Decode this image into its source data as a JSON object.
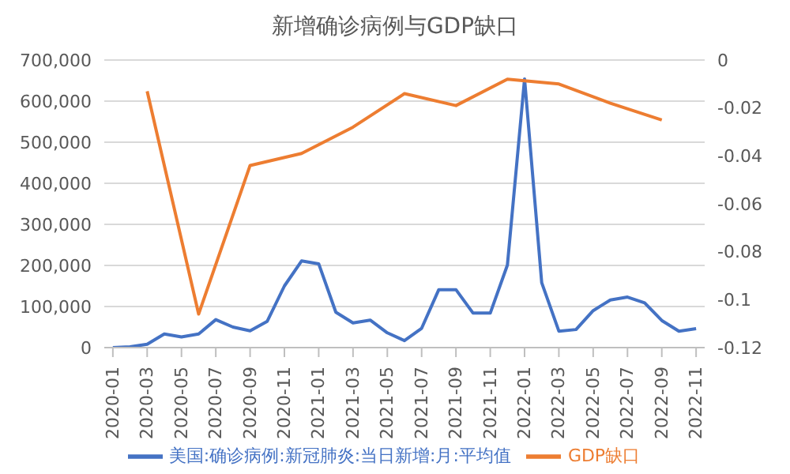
{
  "chart_data": {
    "type": "line",
    "title": "新增确诊病例与GDP缺口",
    "x": [
      "2020-01",
      "2020-02",
      "2020-03",
      "2020-04",
      "2020-05",
      "2020-06",
      "2020-07",
      "2020-08",
      "2020-09",
      "2020-10",
      "2020-11",
      "2020-12",
      "2021-01",
      "2021-02",
      "2021-03",
      "2021-04",
      "2021-05",
      "2021-06",
      "2021-07",
      "2021-08",
      "2021-09",
      "2021-10",
      "2021-11",
      "2021-12",
      "2022-01",
      "2022-02",
      "2022-03",
      "2022-04",
      "2022-05",
      "2022-06",
      "2022-07",
      "2022-08",
      "2022-09",
      "2022-10",
      "2022-11"
    ],
    "series": [
      {
        "name": "美国:确诊病例:新冠肺炎:当日新增:月:平均值",
        "color": "#4472c4",
        "values": [
          0,
          2000,
          8000,
          33000,
          26000,
          33000,
          68000,
          50000,
          41000,
          64000,
          150000,
          211000,
          204000,
          86000,
          60000,
          67000,
          36000,
          17000,
          47000,
          141000,
          141000,
          84000,
          84000,
          201000,
          654000,
          158000,
          40000,
          44000,
          90000,
          116000,
          123000,
          109000,
          66000,
          40000,
          46000
        ]
      },
      {
        "name": "GDP缺口",
        "color": "#ed7d31",
        "axis": "y2",
        "x": [
          "2020-03",
          "2020-06",
          "2020-09",
          "2020-12",
          "2021-03",
          "2021-06",
          "2021-09",
          "2021-12",
          "2022-03",
          "2022-06",
          "2022-09"
        ],
        "values": [
          -0.013,
          -0.106,
          -0.044,
          -0.039,
          -0.028,
          -0.014,
          -0.019,
          -0.008,
          -0.01,
          -0.018,
          -0.025
        ]
      }
    ],
    "xlim": [
      "2019-12-16",
      "2022-11-16"
    ],
    "xticks": [
      "2020-01",
      "2020-03",
      "2020-05",
      "2020-07",
      "2020-09",
      "2020-11",
      "2021-01",
      "2021-03",
      "2021-05",
      "2021-07",
      "2021-09",
      "2021-11",
      "2022-01",
      "2022-03",
      "2022-05",
      "2022-07",
      "2022-09",
      "2022-11"
    ],
    "ylim": [
      0,
      700000
    ],
    "yticks": [
      0,
      {
        "value": 100000,
        "label": "100,000"
      },
      {
        "value": 200000,
        "label": "200,000"
      },
      {
        "value": 300000,
        "label": "300,000"
      },
      {
        "value": 400000,
        "label": "400,000"
      },
      {
        "value": 500000,
        "label": "500,000"
      },
      {
        "value": 600000,
        "label": "600,000"
      },
      {
        "value": 700000,
        "label": "700,000"
      }
    ],
    "y2lim": [
      -0.12,
      0
    ],
    "y2ticks": [
      -0.12,
      -0.1,
      -0.08,
      -0.06,
      -0.04,
      -0.02,
      0
    ],
    "grid": "y",
    "legend": "bottom",
    "marker": "none",
    "line_style": "solid"
  }
}
